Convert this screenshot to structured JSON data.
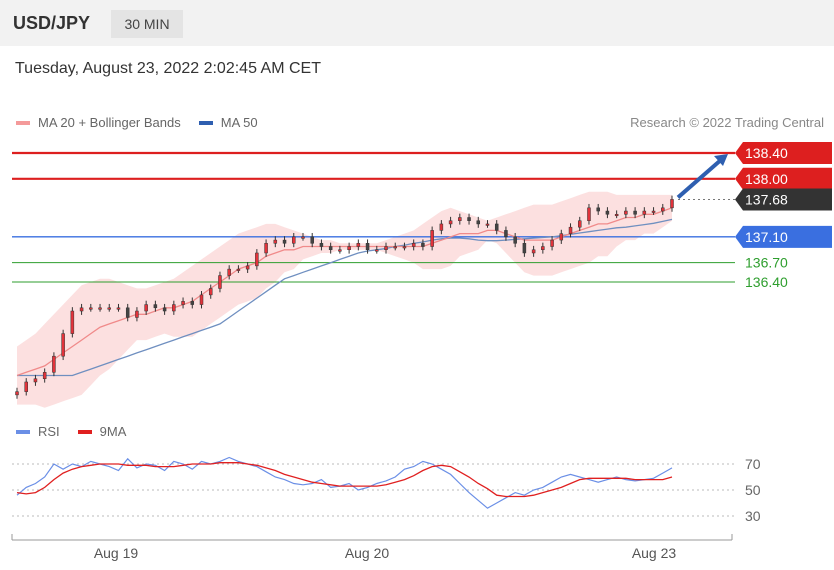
{
  "header": {
    "symbol": "USD/JPY",
    "timeframe": "30 MIN"
  },
  "timestamp": "Tuesday, August 23, 2022 2:02:45 AM CET",
  "credit": "Research © 2022 Trading Central",
  "colors": {
    "resistance": "#dd1f1f",
    "pivot": "#3a6fe0",
    "support": "#2e9e2e",
    "current": "#333333",
    "candle": "#e2333b",
    "bollinger_fill": "#fbd5d5",
    "ma20": "#f08a8a",
    "ma50": "#6f8fc0",
    "rsi": "#6b8fe6",
    "rsi_ma": "#e02020",
    "arrow": "#2e5fb0"
  },
  "chart_data": [
    {
      "type": "line",
      "name": "price",
      "legend": [
        {
          "label": "MA 20 + Bollinger Bands",
          "color": "#f49a9a"
        },
        {
          "label": "MA 50",
          "color": "#2e5fb0"
        }
      ],
      "x_labels": [
        "Aug 19",
        "Aug 20",
        "Aug 23"
      ],
      "ylim": [
        134.4,
        138.6
      ],
      "levels": [
        {
          "value": 138.4,
          "label": "138.40",
          "kind": "resistance"
        },
        {
          "value": 138.0,
          "label": "138.00",
          "kind": "resistance"
        },
        {
          "value": 137.68,
          "label": "137.68",
          "kind": "current"
        },
        {
          "value": 137.1,
          "label": "137.10",
          "kind": "pivot"
        },
        {
          "value": 136.7,
          "label": "136.70",
          "kind": "support"
        },
        {
          "value": 136.4,
          "label": "136.40",
          "kind": "support"
        }
      ],
      "close": [
        134.7,
        134.85,
        134.9,
        135.0,
        135.25,
        135.6,
        135.95,
        136.0,
        136.0,
        136.0,
        136.0,
        136.0,
        135.85,
        135.95,
        136.05,
        136.0,
        135.95,
        136.05,
        136.1,
        136.05,
        136.2,
        136.3,
        136.5,
        136.6,
        136.6,
        136.65,
        136.85,
        137.0,
        137.05,
        137.0,
        137.1,
        137.1,
        137.0,
        136.95,
        136.9,
        136.9,
        136.95,
        137.0,
        136.9,
        136.9,
        136.95,
        136.95,
        136.95,
        137.0,
        136.95,
        137.2,
        137.3,
        137.35,
        137.4,
        137.35,
        137.3,
        137.3,
        137.2,
        137.1,
        137.0,
        136.85,
        136.9,
        136.95,
        137.05,
        137.15,
        137.25,
        137.35,
        137.55,
        137.5,
        137.45,
        137.45,
        137.5,
        137.45,
        137.5,
        137.5,
        137.55,
        137.68
      ],
      "ma20": [
        134.95,
        135.0,
        135.05,
        135.1,
        135.2,
        135.3,
        135.4,
        135.5,
        135.6,
        135.7,
        135.75,
        135.8,
        135.85,
        135.9,
        135.9,
        135.95,
        136.0,
        136.0,
        136.05,
        136.1,
        136.2,
        136.3,
        136.4,
        136.5,
        136.6,
        136.65,
        136.7,
        136.8,
        136.85,
        136.9,
        136.9,
        136.95,
        136.95,
        136.95,
        136.95,
        136.95,
        136.95,
        136.95,
        136.95,
        136.95,
        136.95,
        136.95,
        136.95,
        136.95,
        136.95,
        137.0,
        137.05,
        137.1,
        137.15,
        137.15,
        137.15,
        137.2,
        137.2,
        137.15,
        137.1,
        137.05,
        137.05,
        137.05,
        137.05,
        137.1,
        137.15,
        137.2,
        137.25,
        137.3,
        137.3,
        137.35,
        137.4,
        137.4,
        137.45,
        137.45,
        137.5,
        137.55
      ],
      "bb_upper": [
        135.4,
        135.5,
        135.6,
        135.75,
        135.9,
        136.05,
        136.2,
        136.35,
        136.4,
        136.45,
        136.45,
        136.4,
        136.35,
        136.3,
        136.3,
        136.35,
        136.4,
        136.45,
        136.55,
        136.65,
        136.75,
        136.85,
        136.95,
        137.05,
        137.15,
        137.2,
        137.25,
        137.3,
        137.3,
        137.25,
        137.2,
        137.15,
        137.1,
        137.05,
        137.05,
        137.0,
        137.0,
        137.0,
        137.0,
        137.0,
        137.05,
        137.1,
        137.15,
        137.2,
        137.3,
        137.4,
        137.5,
        137.55,
        137.5,
        137.45,
        137.4,
        137.35,
        137.4,
        137.45,
        137.5,
        137.55,
        137.6,
        137.6,
        137.6,
        137.65,
        137.7,
        137.75,
        137.8,
        137.8,
        137.8,
        137.75,
        137.75,
        137.75,
        137.75,
        137.75,
        137.75,
        137.75
      ],
      "bb_lower": [
        134.5,
        134.5,
        134.5,
        134.45,
        134.5,
        134.55,
        134.6,
        134.65,
        134.8,
        134.95,
        135.05,
        135.2,
        135.35,
        135.5,
        135.5,
        135.55,
        135.6,
        135.55,
        135.55,
        135.55,
        135.65,
        135.75,
        135.85,
        135.95,
        136.05,
        136.1,
        136.15,
        136.3,
        136.4,
        136.55,
        136.6,
        136.75,
        136.8,
        136.85,
        136.85,
        136.9,
        136.9,
        136.9,
        136.9,
        136.9,
        136.85,
        136.8,
        136.75,
        136.7,
        136.6,
        136.6,
        136.6,
        136.65,
        136.8,
        136.85,
        136.9,
        137.05,
        137.0,
        136.85,
        136.7,
        136.55,
        136.5,
        136.5,
        136.5,
        136.55,
        136.6,
        136.65,
        136.7,
        136.8,
        136.8,
        136.95,
        137.05,
        137.05,
        137.15,
        137.15,
        137.25,
        137.35
      ],
      "ma50": [
        134.95,
        134.95,
        134.95,
        134.95,
        134.95,
        134.95,
        134.95,
        135.0,
        135.05,
        135.1,
        135.15,
        135.2,
        135.25,
        135.3,
        135.35,
        135.4,
        135.45,
        135.5,
        135.55,
        135.6,
        135.65,
        135.7,
        135.75,
        135.85,
        135.95,
        136.05,
        136.15,
        136.25,
        136.35,
        136.45,
        136.5,
        136.55,
        136.6,
        136.65,
        136.7,
        136.75,
        136.8,
        136.85,
        136.88,
        136.9,
        136.92,
        136.95,
        136.97,
        137.0,
        137.02,
        137.05,
        137.07,
        137.08,
        137.08,
        137.07,
        137.05,
        137.04,
        137.04,
        137.05,
        137.06,
        137.07,
        137.08,
        137.09,
        137.1,
        137.12,
        137.14,
        137.16,
        137.18,
        137.2,
        137.22,
        137.24,
        137.25,
        137.27,
        137.29,
        137.31,
        137.34,
        137.37
      ],
      "forecast": {
        "from": 137.68,
        "to": 138.4
      }
    },
    {
      "type": "line",
      "name": "rsi",
      "legend": [
        {
          "label": "RSI",
          "color": "#6b8fe6"
        },
        {
          "label": "9MA",
          "color": "#e02020"
        }
      ],
      "yticks": [
        70,
        50,
        30
      ],
      "ylim": [
        22,
        82
      ],
      "series": [
        {
          "name": "RSI",
          "values": [
            46,
            52,
            55,
            60,
            70,
            66,
            70,
            68,
            72,
            70,
            68,
            65,
            74,
            67,
            70,
            69,
            65,
            72,
            70,
            66,
            72,
            70,
            72,
            75,
            72,
            70,
            68,
            64,
            60,
            58,
            55,
            54,
            55,
            58,
            52,
            53,
            55,
            50,
            52,
            55,
            57,
            60,
            66,
            68,
            72,
            70,
            66,
            62,
            55,
            48,
            42,
            36,
            40,
            44,
            48,
            46,
            50,
            52,
            56,
            60,
            62,
            60,
            58,
            56,
            58,
            60,
            58,
            57,
            58,
            59,
            63,
            67
          ]
        },
        {
          "name": "9MA",
          "values": [
            48,
            47,
            48,
            52,
            58,
            63,
            66,
            68,
            69,
            70,
            70,
            70,
            69,
            69,
            69,
            68,
            68,
            68,
            69,
            70,
            70,
            70,
            71,
            71,
            71,
            70,
            69,
            67,
            65,
            62,
            60,
            58,
            56,
            55,
            54,
            53,
            53,
            53,
            53,
            53,
            54,
            56,
            58,
            61,
            65,
            68,
            69,
            68,
            64,
            60,
            55,
            51,
            46,
            45,
            45,
            45,
            46,
            48,
            50,
            52,
            55,
            58,
            59,
            59,
            59,
            59,
            59,
            58,
            58,
            58,
            58,
            60
          ]
        }
      ]
    }
  ]
}
